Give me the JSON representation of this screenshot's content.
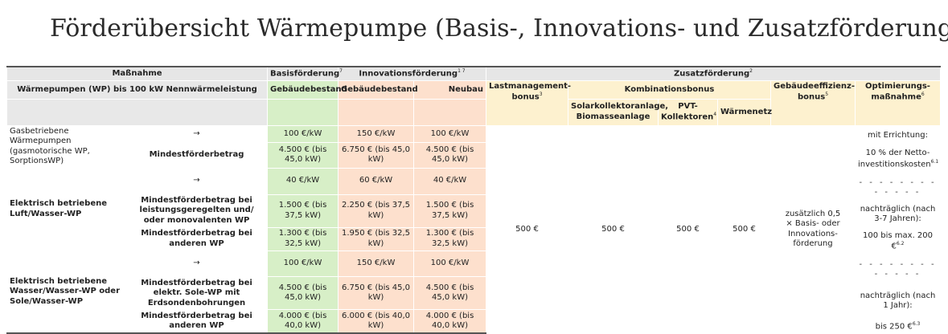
{
  "title": "Förderübersicht Wärmepumpe (Basis-, Innovations- und Zusatzförderung)",
  "header": {
    "massnahme": "Maßnahme",
    "basis": "Basisförderung",
    "basis_sup": "7",
    "innovation": "Innovationsförderung",
    "innovation_sup": "1 7",
    "zusatz": "Zusatzförderung",
    "zusatz_sup": "2",
    "wp_scope": "Wärmepumpen (WP) bis 100 kW Nennwärmeleistung",
    "gebaeudebestand_basis": "Gebäudebestand",
    "gebaeudebestand_innov": "Gebäudebestand",
    "neubau": "Neubau",
    "lastmanagement": "Lastmanagement-bonus",
    "lastmanagement_sup": "3",
    "kombination": "Kombinationsbonus",
    "effizienz": "Gebäudeeffizienz-bonus",
    "effizienz_sup": "5",
    "optimierung": "Optimierungs-maßnahme",
    "optimierung_sup": "6",
    "solar": "Solarkollektoranlage, Biomasseanlage",
    "pvt": "PVT-Kollektoren",
    "pvt_sup": "4",
    "waermenetz": "Wärmenetz"
  },
  "groups": {
    "gas": "Gasbetriebene Wärmepumpen (gasmotorische WP, SorptionsWP)",
    "luft": "Elektrisch betriebene Luft/Wasser-WP",
    "sole": "Elektrisch betriebene Wasser/Wasser-WP oder Sole/Wasser-WP"
  },
  "rows": {
    "gas_arrow": {
      "label": "→",
      "basis": "100 €/kW",
      "innov_bestand": "150 €/kW",
      "innov_neubau": "100 €/kW"
    },
    "gas_min": {
      "label": "Mindestförderbetrag",
      "basis": "4.500 € (bis 45,0 kW)",
      "innov_bestand": "6.750 € (bis 45,0 kW)",
      "innov_neubau": "4.500 € (bis 45,0 kW)"
    },
    "luft_arrow": {
      "label": "→",
      "basis": "40 €/kW",
      "innov_bestand": "60 €/kW",
      "innov_neubau": "40 €/kW"
    },
    "luft_min1": {
      "label": "Mindestförderbetrag bei leistungsgeregelten und/ oder monovalenten WP",
      "basis": "1.500 € (bis 37,5 kW)",
      "innov_bestand": "2.250 € (bis 37,5 kW)",
      "innov_neubau": "1.500 € (bis 37,5 kW)"
    },
    "luft_min2": {
      "label": "Mindestförderbetrag bei anderen WP",
      "basis": "1.300 € (bis 32,5 kW)",
      "innov_bestand": "1.950 € (bis 32,5 kW)",
      "innov_neubau": "1.300 € (bis 32,5 kW)"
    },
    "sole_arrow": {
      "label": "→",
      "basis": "100 €/kW",
      "innov_bestand": "150 €/kW",
      "innov_neubau": "100 €/kW"
    },
    "sole_min1": {
      "label": "Mindestförderbetrag bei elektr. Sole-WP mit Erdsondenbohrungen",
      "basis": "4.500 € (bis 45,0 kW)",
      "innov_bestand": "6.750 € (bis 45,0 kW)",
      "innov_neubau": "4.500 € (bis 45,0 kW)"
    },
    "sole_min2": {
      "label": "Mindestförderbetrag bei anderen WP",
      "basis": "4.000 € (bis 40,0 kW)",
      "innov_bestand": "6.000 € (bis 40,0 kW)",
      "innov_neubau": "4.000 € (bis 40,0 kW)"
    }
  },
  "zusatz": {
    "lastmanagement": "500 €",
    "solar": "500 €",
    "pvt": "500 €",
    "waermenetz": "500 €",
    "effizienz": "zusätzlich 0,5 × Basis- oder Innovations-förderung",
    "opt_errichtung": "mit Errichtung:",
    "opt_netto": "10 % der Netto-investitionskosten",
    "opt_netto_sup": "6.1",
    "opt_dash1": "- - - - - - - - - - - - -",
    "opt_nachtr1": "nachträglich (nach 3-7 Jahren):",
    "opt_bis200": "100 bis max. 200 €",
    "opt_bis200_sup": "6.2",
    "opt_dash2": "- - - - - - - - - - - - -",
    "opt_nachtr2": "nachträglich (nach 1 Jahr):",
    "opt_bis250": "bis 250 €",
    "opt_bis250_sup": "6.3"
  }
}
